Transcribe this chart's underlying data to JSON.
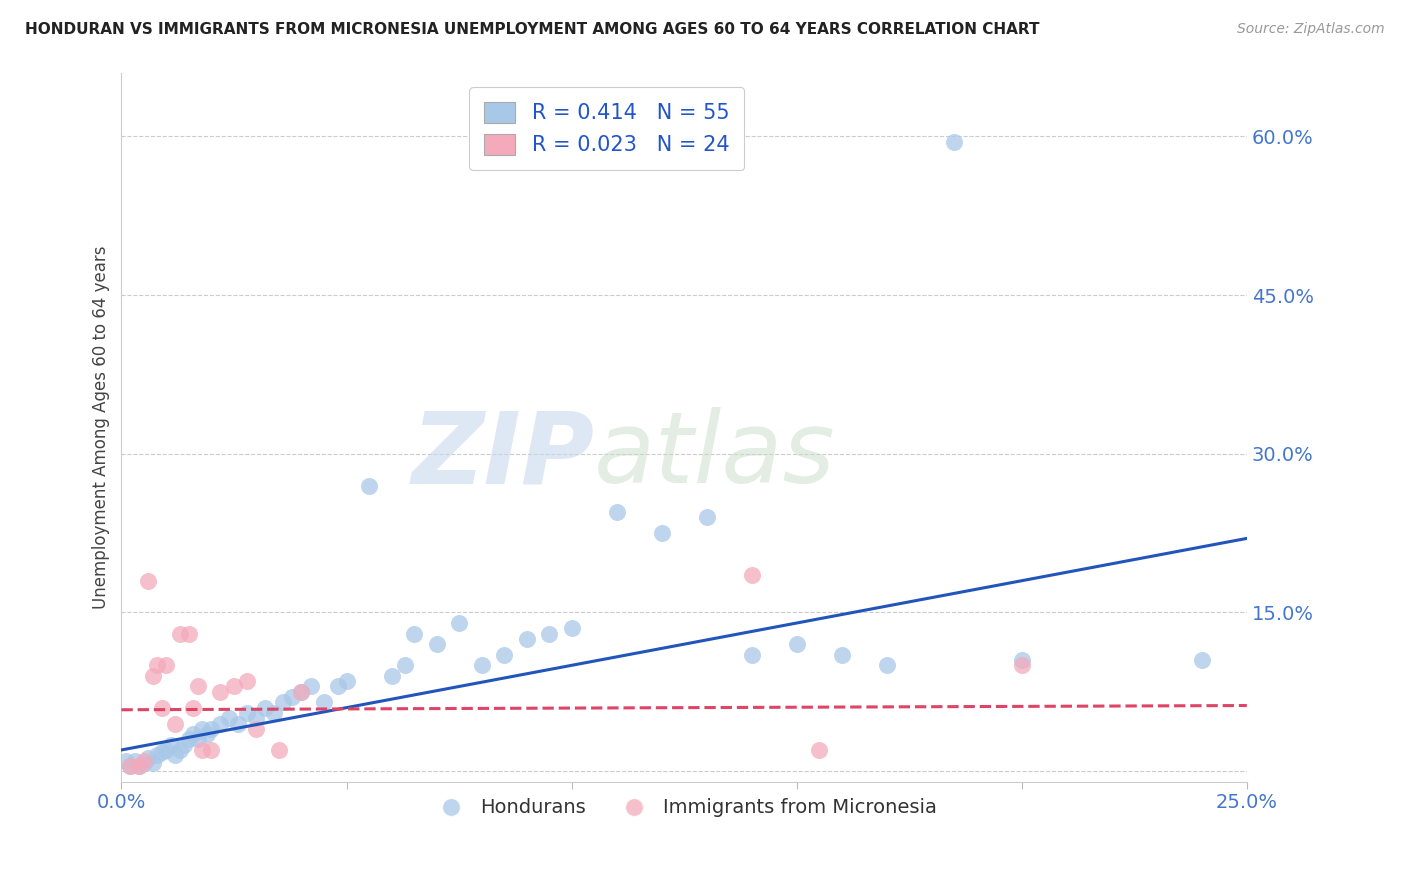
{
  "title": "HONDURAN VS IMMIGRANTS FROM MICRONESIA UNEMPLOYMENT AMONG AGES 60 TO 64 YEARS CORRELATION CHART",
  "source": "Source: ZipAtlas.com",
  "xlabel_blue": "Hondurans",
  "xlabel_pink": "Immigrants from Micronesia",
  "ylabel": "Unemployment Among Ages 60 to 64 years",
  "blue_R": "0.414",
  "blue_N": "55",
  "pink_R": "0.023",
  "pink_N": "24",
  "blue_color": "#a8c8e8",
  "pink_color": "#f4aabb",
  "blue_line_color": "#2255bb",
  "pink_line_color": "#dd4466",
  "xlim": [
    0.0,
    0.25
  ],
  "ylim": [
    -0.01,
    0.66
  ],
  "blue_scatter_x": [
    0.001,
    0.002,
    0.003,
    0.004,
    0.005,
    0.006,
    0.007,
    0.008,
    0.009,
    0.01,
    0.011,
    0.012,
    0.013,
    0.014,
    0.015,
    0.016,
    0.017,
    0.018,
    0.019,
    0.02,
    0.022,
    0.024,
    0.026,
    0.028,
    0.03,
    0.032,
    0.034,
    0.036,
    0.038,
    0.04,
    0.042,
    0.045,
    0.048,
    0.05,
    0.055,
    0.06,
    0.063,
    0.065,
    0.07,
    0.075,
    0.08,
    0.085,
    0.09,
    0.095,
    0.1,
    0.11,
    0.12,
    0.13,
    0.14,
    0.15,
    0.16,
    0.17,
    0.185,
    0.2,
    0.24
  ],
  "blue_scatter_y": [
    0.01,
    0.005,
    0.01,
    0.005,
    0.008,
    0.012,
    0.008,
    0.015,
    0.018,
    0.02,
    0.025,
    0.015,
    0.02,
    0.025,
    0.03,
    0.035,
    0.03,
    0.04,
    0.035,
    0.04,
    0.045,
    0.05,
    0.045,
    0.055,
    0.05,
    0.06,
    0.055,
    0.065,
    0.07,
    0.075,
    0.08,
    0.065,
    0.08,
    0.085,
    0.27,
    0.09,
    0.1,
    0.13,
    0.12,
    0.14,
    0.1,
    0.11,
    0.125,
    0.13,
    0.135,
    0.245,
    0.225,
    0.24,
    0.11,
    0.12,
    0.11,
    0.1,
    0.595,
    0.105,
    0.105
  ],
  "pink_scatter_x": [
    0.002,
    0.004,
    0.005,
    0.006,
    0.007,
    0.008,
    0.009,
    0.01,
    0.012,
    0.013,
    0.015,
    0.016,
    0.017,
    0.018,
    0.02,
    0.022,
    0.025,
    0.028,
    0.03,
    0.035,
    0.04,
    0.14,
    0.155,
    0.2
  ],
  "pink_scatter_y": [
    0.005,
    0.005,
    0.01,
    0.18,
    0.09,
    0.1,
    0.06,
    0.1,
    0.045,
    0.13,
    0.13,
    0.06,
    0.08,
    0.02,
    0.02,
    0.075,
    0.08,
    0.085,
    0.04,
    0.02,
    0.075,
    0.185,
    0.02,
    0.1
  ],
  "blue_trend_x0": 0.0,
  "blue_trend_x1": 0.25,
  "blue_trend_y0": 0.02,
  "blue_trend_y1": 0.22,
  "pink_trend_x0": 0.0,
  "pink_trend_x1": 0.25,
  "pink_trend_y0": 0.058,
  "pink_trend_y1": 0.062,
  "watermark_zip": "ZIP",
  "watermark_atlas": "atlas",
  "right_yticks": [
    0.0,
    0.15,
    0.3,
    0.45,
    0.6
  ],
  "right_yticklabels": [
    "",
    "15.0%",
    "30.0%",
    "45.0%",
    "60.0%"
  ],
  "xticks": [
    0.0,
    0.05,
    0.1,
    0.15,
    0.2,
    0.25
  ],
  "xticklabels": [
    "0.0%",
    "",
    "",
    "",
    "",
    "25.0%"
  ],
  "background_color": "#ffffff",
  "grid_color": "#cccccc"
}
